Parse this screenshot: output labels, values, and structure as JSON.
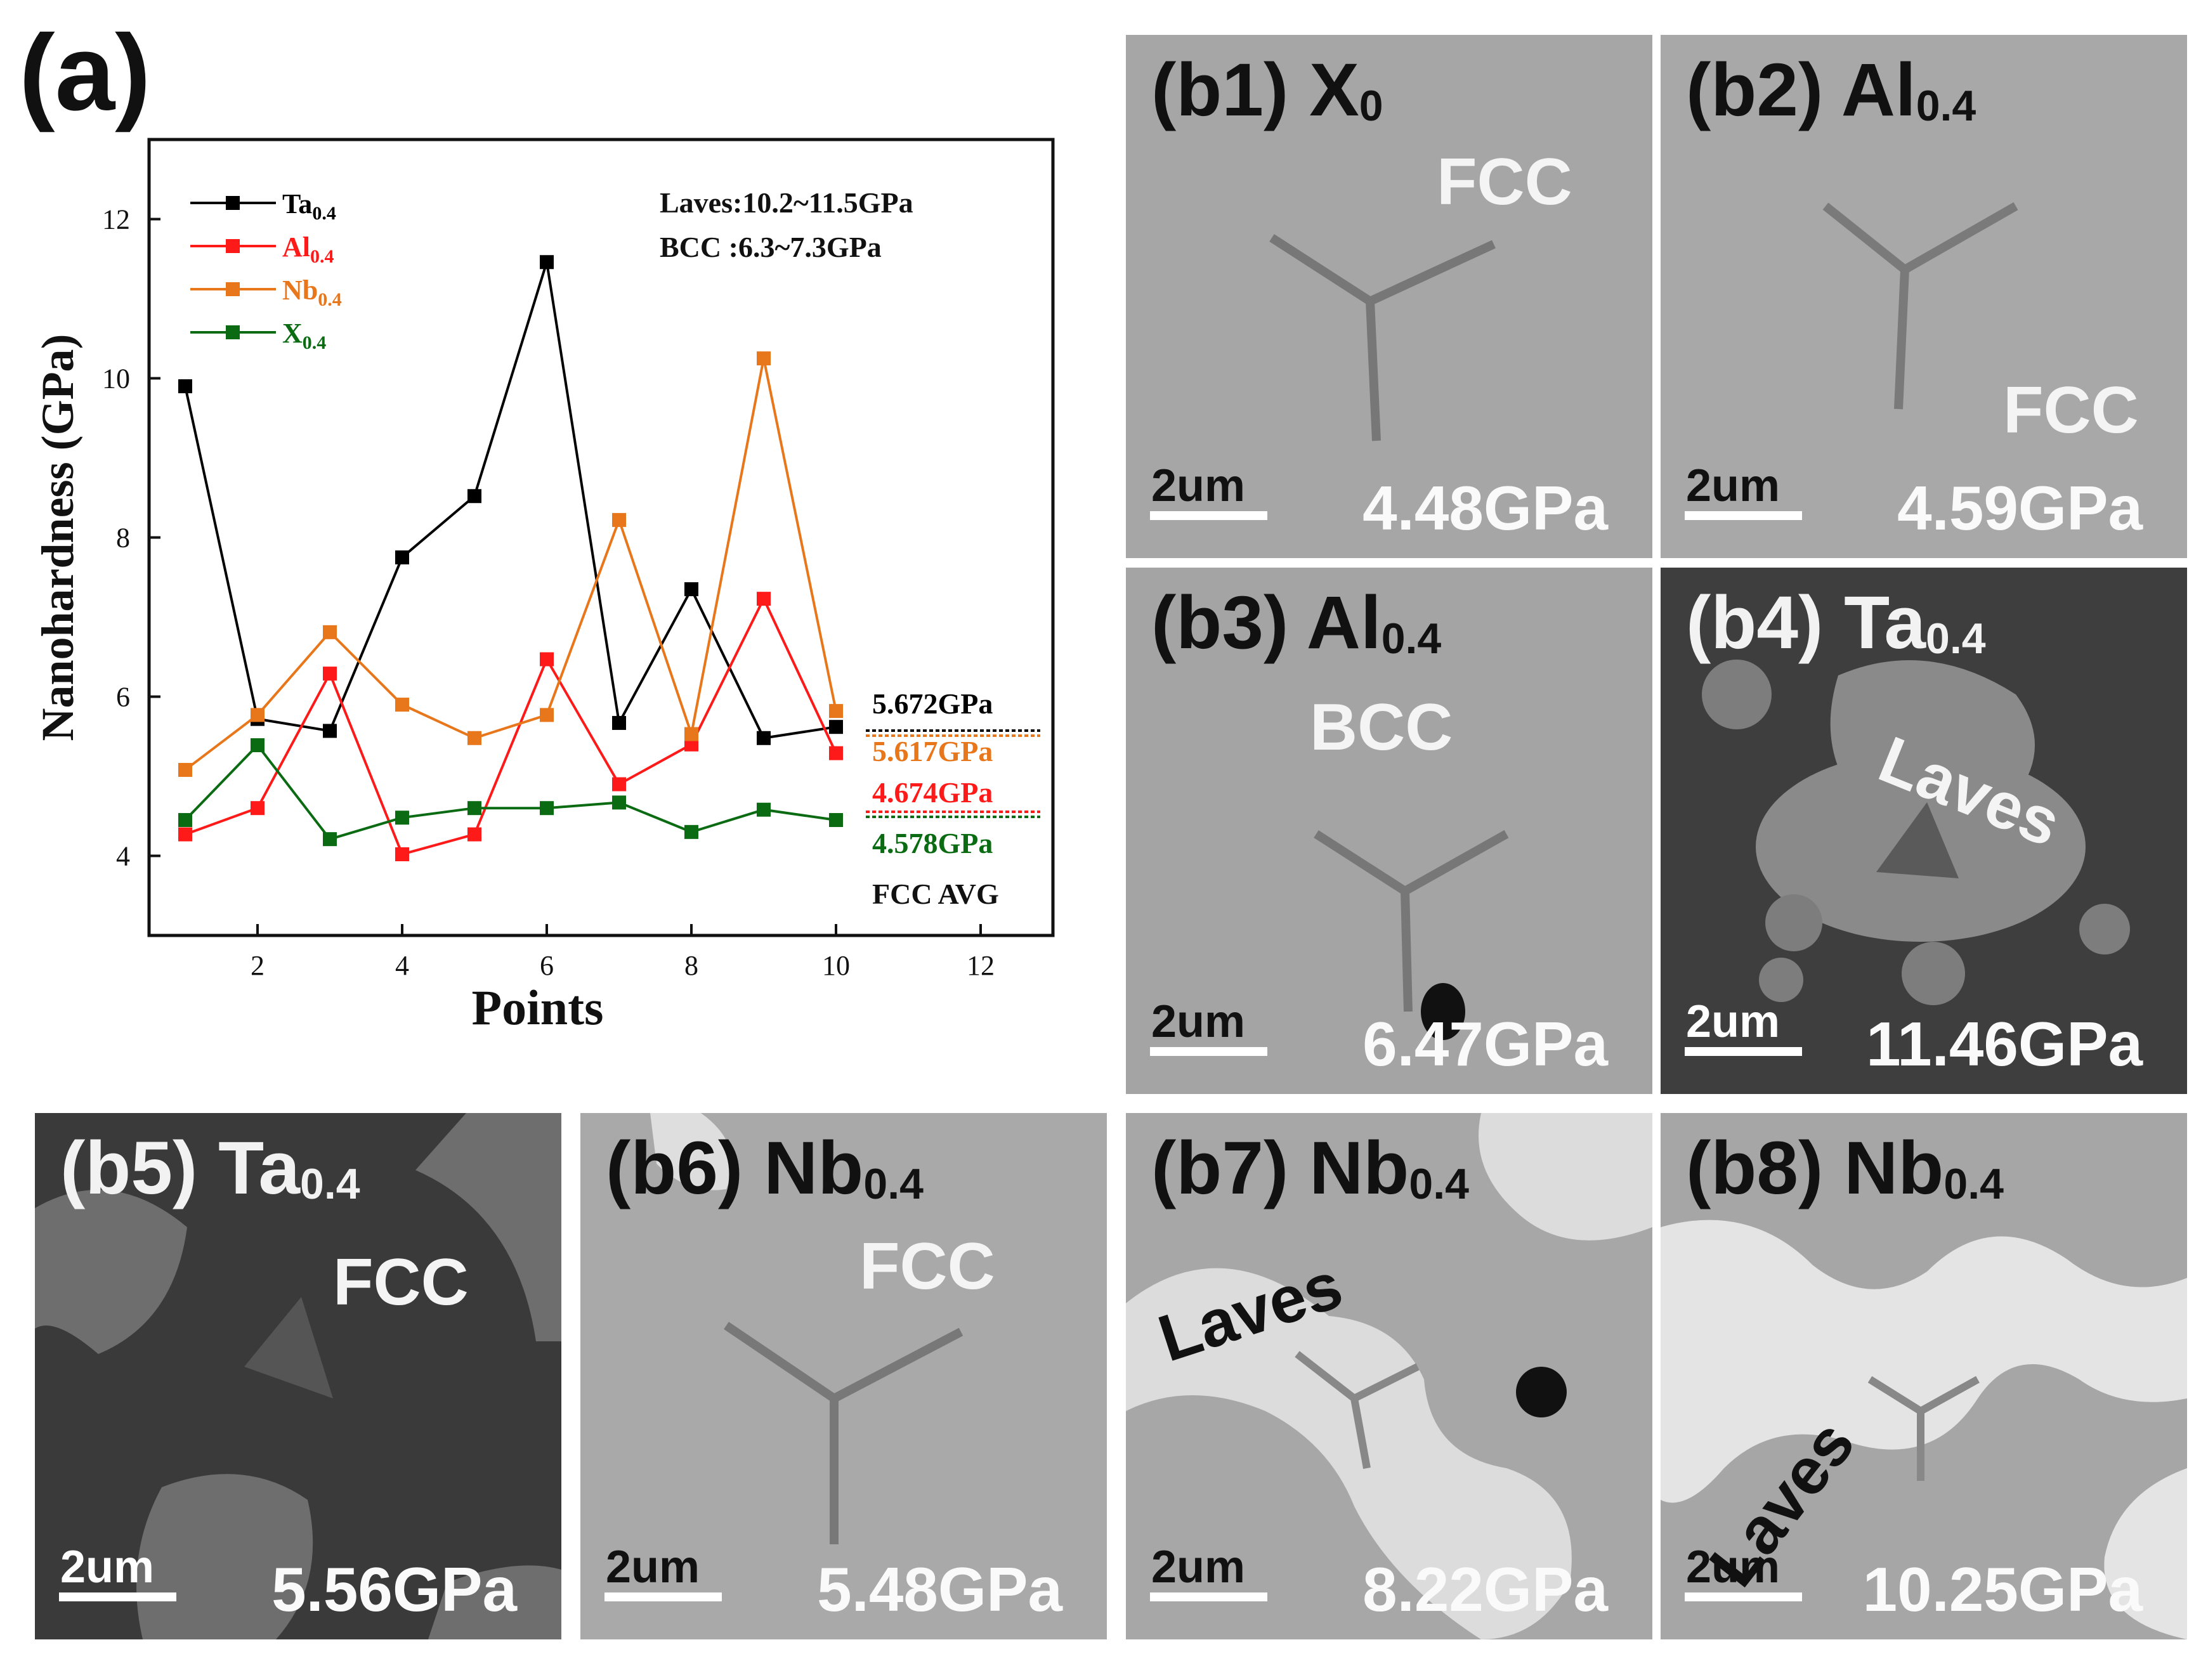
{
  "panel_a_label": "(a)",
  "chart_data": {
    "type": "line",
    "xlabel": "Points",
    "ylabel": "Nanohardness (GPa)",
    "xlim": [
      0.5,
      13.0
    ],
    "ylim": [
      3.0,
      13.0
    ],
    "xticks": [
      2,
      4,
      6,
      8,
      10,
      12
    ],
    "yticks": [
      4,
      6,
      8,
      10,
      12
    ],
    "x": [
      1,
      2,
      3,
      4,
      5,
      6,
      7,
      8,
      9,
      10
    ],
    "series": [
      {
        "name": "Ta",
        "sub": "0.4",
        "color": "#000000",
        "values": [
          9.9,
          5.72,
          5.57,
          7.75,
          8.52,
          11.46,
          5.67,
          7.35,
          5.48,
          5.62
        ]
      },
      {
        "name": "Al",
        "sub": "0.4",
        "color": "#ff1a1a",
        "values": [
          4.27,
          4.6,
          6.29,
          4.02,
          4.27,
          6.47,
          4.9,
          5.4,
          7.23,
          5.29
        ]
      },
      {
        "name": "Nb",
        "sub": "0.4",
        "color": "#e8761a",
        "values": [
          5.08,
          5.77,
          6.81,
          5.9,
          5.48,
          5.77,
          8.22,
          5.53,
          10.25,
          5.82
        ]
      },
      {
        "name": "X",
        "sub": "0.4",
        "color": "#0a6b12",
        "values": [
          4.45,
          5.39,
          4.21,
          4.48,
          4.6,
          4.6,
          4.67,
          4.3,
          4.58,
          4.45
        ]
      }
    ],
    "annotations": {
      "laves": "Laves:10.2~11.5GPa",
      "bcc": "BCC  :6.3~7.3GPa",
      "avg_values": [
        {
          "text": "5.672GPa",
          "color": "#000000",
          "y": 5.672
        },
        {
          "text": "5.617GPa",
          "color": "#e8761a",
          "y": 5.617
        },
        {
          "text": "4.674GPa",
          "color": "#ff1a1a",
          "y": 4.674
        },
        {
          "text": "4.578GPa",
          "color": "#0a6b12",
          "y": 4.578
        }
      ],
      "avg_caption": "FCC AVG"
    }
  },
  "tiles": [
    {
      "id": "b1",
      "label": "(b1) X",
      "sub": "0",
      "phase": "FCC",
      "hardness": "4.48GPa",
      "scalebar": "2um"
    },
    {
      "id": "b2",
      "label": "(b2) Al",
      "sub": "0.4",
      "phase": "FCC",
      "hardness": "4.59GPa",
      "scalebar": "2um"
    },
    {
      "id": "b3",
      "label": "(b3) Al",
      "sub": "0.4",
      "phase": "BCC",
      "hardness": "6.47GPa",
      "scalebar": "2um"
    },
    {
      "id": "b4",
      "label": "(b4) Ta",
      "sub": "0.4",
      "phase": "Laves",
      "hardness": "11.46GPa",
      "scalebar": "2um"
    },
    {
      "id": "b5",
      "label": "(b5) Ta",
      "sub": "0.4",
      "phase": "FCC",
      "hardness": "5.56GPa",
      "scalebar": "2um"
    },
    {
      "id": "b6",
      "label": "(b6) Nb",
      "sub": "0.4",
      "phase": "FCC",
      "hardness": "5.48GPa",
      "scalebar": "2um"
    },
    {
      "id": "b7",
      "label": "(b7) Nb",
      "sub": "0.4",
      "phase": "Laves",
      "hardness": "8.22GPa",
      "scalebar": "2um"
    },
    {
      "id": "b8",
      "label": "(b8) Nb",
      "sub": "0.4",
      "phase": "Laves",
      "hardness": "10.25GPa",
      "scalebar": "2um"
    }
  ]
}
